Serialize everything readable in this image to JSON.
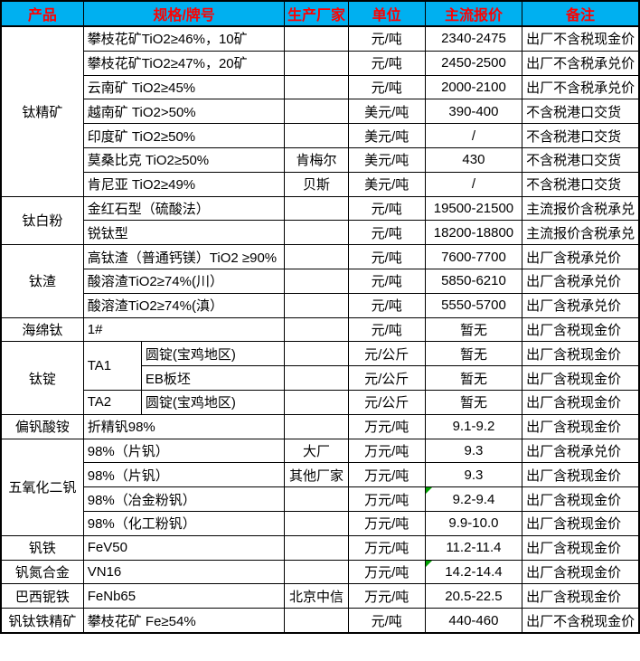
{
  "colors": {
    "header_bg": "#00B0F0",
    "header_text": "#FF0000",
    "grid": "#000000",
    "comment_marker": "#00A000",
    "background": "#FFFFFF"
  },
  "header": {
    "product": "产品",
    "spec": "规格/牌号",
    "manufacturer": "生产厂家",
    "unit": "单位",
    "price": "主流报价",
    "note": "备注"
  },
  "groups": [
    {
      "label": "钛精矿"
    },
    {
      "label": "钛白粉"
    },
    {
      "label": "钛渣"
    },
    {
      "label": "海绵钛"
    },
    {
      "label": "钛锭"
    },
    {
      "label": "偏钒酸铵"
    },
    {
      "label": "五氧化二钒"
    },
    {
      "label": "钒铁"
    },
    {
      "label": "钒氮合金"
    },
    {
      "label": "巴西铌铁"
    },
    {
      "label": "钒钛铁精矿"
    }
  ],
  "rows": [
    {
      "spec": "攀枝花矿TiO2≥46%，10矿",
      "mfr": "",
      "unit": "元/吨",
      "price": "2340-2475",
      "note": "出厂不含税现金价"
    },
    {
      "spec": "攀枝花矿TiO2≥47%，20矿",
      "mfr": "",
      "unit": "元/吨",
      "price": "2450-2500",
      "note": "出厂不含税承兑价"
    },
    {
      "spec": "云南矿 TiO2≥45%",
      "mfr": "",
      "unit": "元/吨",
      "price": "2000-2100",
      "note": "出厂不含税承兑价"
    },
    {
      "spec": "越南矿 TiO2>50%",
      "mfr": "",
      "unit": "美元/吨",
      "price": "390-400",
      "note": "不含税港口交货"
    },
    {
      "spec": "印度矿 TiO2≥50%",
      "mfr": "",
      "unit": "美元/吨",
      "price": "/",
      "note": "不含税港口交货"
    },
    {
      "spec": "莫桑比克 TiO2≥50%",
      "mfr": "肯梅尔",
      "unit": "美元/吨",
      "price": "430",
      "note": "不含税港口交货"
    },
    {
      "spec": "肯尼亚 TiO2≥49%",
      "mfr": "贝斯",
      "unit": "美元/吨",
      "price": "/",
      "note": "不含税港口交货"
    },
    {
      "spec": "金红石型（硫酸法）",
      "mfr": "",
      "unit": "元/吨",
      "price": "19500-21500",
      "note": "主流报价含税承兑"
    },
    {
      "spec": "锐钛型",
      "mfr": "",
      "unit": "元/吨",
      "price": "18200-18800",
      "note": "主流报价含税承兑"
    },
    {
      "spec": "高钛渣（普通钙镁）TiO2 ≥90%",
      "mfr": "",
      "unit": "元/吨",
      "price": "7600-7700",
      "note": "出厂含税承兑价"
    },
    {
      "spec": "酸溶渣TiO2≥74%(川）",
      "mfr": "",
      "unit": "元/吨",
      "price": "5850-6210",
      "note": "出厂含税承兑价"
    },
    {
      "spec": "酸溶渣TiO2≥74%(滇）",
      "mfr": "",
      "unit": "元/吨",
      "price": "5550-5700",
      "note": "出厂含税承兑价"
    },
    {
      "spec": "1#",
      "mfr": "",
      "unit": "元/吨",
      "price": "暂无",
      "note": "出厂含税现金价"
    },
    {
      "specA": "TA1",
      "specB": "圆锭(宝鸡地区)",
      "mfr": "",
      "unit": "元/公斤",
      "price": "暂无",
      "note": "出厂含税现金价"
    },
    {
      "specB": "EB板坯",
      "mfr": "",
      "unit": "元/公斤",
      "price": "暂无",
      "note": "出厂含税现金价"
    },
    {
      "specA": "TA2",
      "specB": "圆锭(宝鸡地区)",
      "mfr": "",
      "unit": "元/公斤",
      "price": "暂无",
      "note": "出厂含税现金价"
    },
    {
      "spec": "折精钒98%",
      "mfr": "",
      "unit": "万元/吨",
      "price": "9.1-9.2",
      "note": "出厂含税现金价"
    },
    {
      "spec": "98%（片钒）",
      "mfr": "大厂",
      "unit": "万元/吨",
      "price": "9.3",
      "note": "出厂含税承兑价"
    },
    {
      "spec": "98%（片钒）",
      "mfr": "其他厂家",
      "unit": "万元/吨",
      "price": "9.3",
      "note": "出厂含税现金价"
    },
    {
      "spec": "98%（冶金粉钒）",
      "mfr": "",
      "unit": "万元/吨",
      "price": "9.2-9.4",
      "note": "出厂含税现金价",
      "has_comment_marker": true
    },
    {
      "spec": "98%（化工粉钒）",
      "mfr": "",
      "unit": "万元/吨",
      "price": "9.9-10.0",
      "note": "出厂含税现金价"
    },
    {
      "spec": "FeV50",
      "mfr": "",
      "unit": "万元/吨",
      "price": "11.2-11.4",
      "note": "出厂含税现金价"
    },
    {
      "spec": "VN16",
      "mfr": "",
      "unit": "万元/吨",
      "price": "14.2-14.4",
      "note": "出厂含税现金价",
      "has_comment_marker": true
    },
    {
      "spec": "FeNb65",
      "mfr": "北京中信",
      "unit": "万元/吨",
      "price": "20.5-22.5",
      "note": "出厂含税现金价"
    },
    {
      "spec": "攀枝花矿 Fe≥54%",
      "mfr": "",
      "unit": "元/吨",
      "price": "440-460",
      "note": "出厂不含税现金价"
    }
  ]
}
